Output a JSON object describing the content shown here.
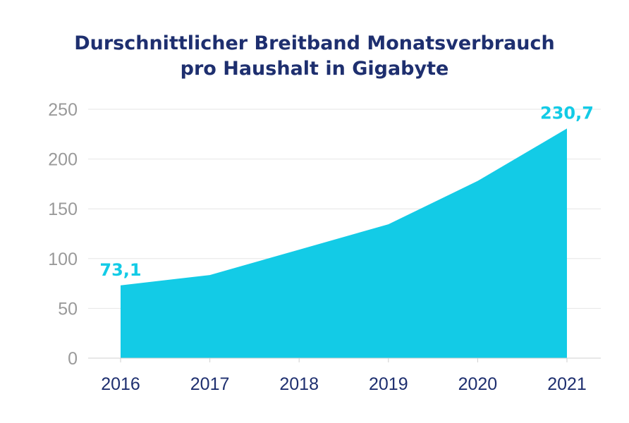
{
  "chart_data": {
    "type": "area",
    "title_lines": [
      "Durschnittlicher Breitband Monatsverbrauch",
      "pro Haushalt in Gigabyte"
    ],
    "x": [
      "2016",
      "2017",
      "2018",
      "2019",
      "2020",
      "2021"
    ],
    "values": [
      73.1,
      83.5,
      109,
      134.5,
      178,
      230.7
    ],
    "ylim": [
      0,
      250
    ],
    "yticks": [
      "0",
      "50",
      "100",
      "150",
      "200",
      "250"
    ],
    "data_labels": [
      {
        "index": 0,
        "text": "73,1"
      },
      {
        "index": 5,
        "text": "230,7"
      }
    ],
    "grid": true,
    "colors": {
      "area": "#13cbe6",
      "title": "#1e2f6f",
      "grid": "#e6e6e6",
      "axis": "#cfcfcf",
      "ytick": "#9a9a9a",
      "xtick": "#1e2f6f",
      "label": "#13cbe6"
    }
  }
}
